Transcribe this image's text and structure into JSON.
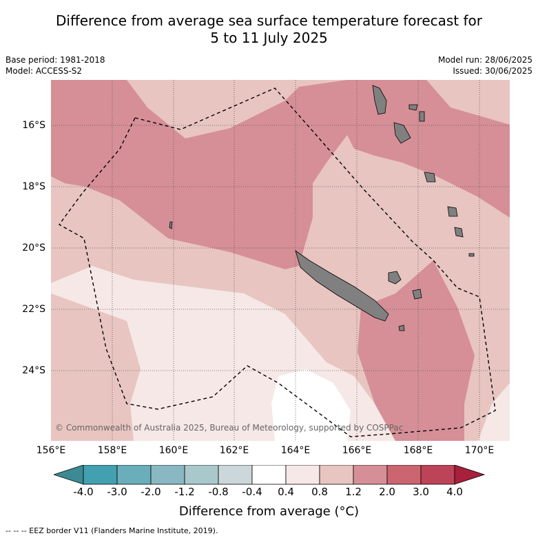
{
  "title_line1": "Difference from average sea surface temperature forecast for",
  "title_line2": "5 to 11 July 2025",
  "meta": {
    "base_period": "Base period: 1981-2018",
    "model": "Model: ACCESS-S2",
    "model_run": "Model run: 28/06/2025",
    "issued": "Issued: 30/06/2025"
  },
  "lat_labels": [
    "16°S",
    "18°S",
    "20°S",
    "22°S",
    "24°S"
  ],
  "lon_labels": [
    "156°E",
    "158°E",
    "160°E",
    "162°E",
    "164°E",
    "166°E",
    "168°E",
    "170°E"
  ],
  "copyright": "© Commonwealth of Australia 2025, Bureau of Meteorology, supported by COSPPac",
  "colorbar": {
    "labels": [
      "-4.0",
      "-3.0",
      "-2.0",
      "-1.2",
      "-0.8",
      "-0.4",
      "0.4",
      "0.8",
      "1.2",
      "2.0",
      "3.0",
      "4.0"
    ],
    "colors": [
      "#42a0b0",
      "#6aaebb",
      "#8ab8c2",
      "#a9c8cc",
      "#cbd7da",
      "#ffffff",
      "#f5e8e6",
      "#e8c5c0",
      "#d68f96",
      "#cb6570",
      "#bd4458"
    ],
    "under_color": "#3d8a94",
    "over_color": "#a8203c",
    "title": "Difference from average (°C)"
  },
  "legend_note": "-- -- -- EEZ border V11 (Flanders Marine Institute, 2019).",
  "map_colors": {
    "anomaly_0_4_to_0_8": "#f5e8e6",
    "anomaly_0_8_to_1_2": "#e8c5c0",
    "anomaly_1_2_to_2_0": "#d68f96",
    "anomaly_neutral": "#ffffff",
    "land": "#808080"
  }
}
